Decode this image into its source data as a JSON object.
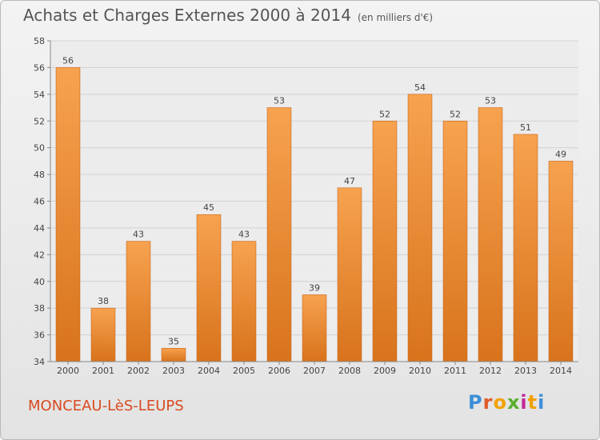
{
  "header": {
    "title": "Achats et Charges Externes 2000 à 2014",
    "subtitle": "(en milliers d'€)"
  },
  "footer": {
    "commune": "MONCEAU-LèS-LEUPS",
    "logo": "Proxiti"
  },
  "colors": {
    "bar_light": "#f7a24f",
    "bar_dark": "#d8731c",
    "commune": "#d94a1f"
  },
  "chart_data": {
    "type": "bar",
    "title": "Achats et Charges Externes 2000 à 2014",
    "subtitle": "(en milliers d'€)",
    "categories": [
      "2000",
      "2001",
      "2002",
      "2003",
      "2004",
      "2005",
      "2006",
      "2007",
      "2008",
      "2009",
      "2010",
      "2011",
      "2012",
      "2013",
      "2014"
    ],
    "values": [
      56,
      38,
      43,
      35,
      45,
      43,
      53,
      39,
      47,
      52,
      54,
      52,
      53,
      51,
      49
    ],
    "ylim": [
      34,
      58
    ],
    "yticks": [
      34,
      36,
      38,
      40,
      42,
      44,
      46,
      48,
      50,
      52,
      54,
      56,
      58
    ],
    "grid": true,
    "xlabel": "",
    "ylabel": ""
  }
}
